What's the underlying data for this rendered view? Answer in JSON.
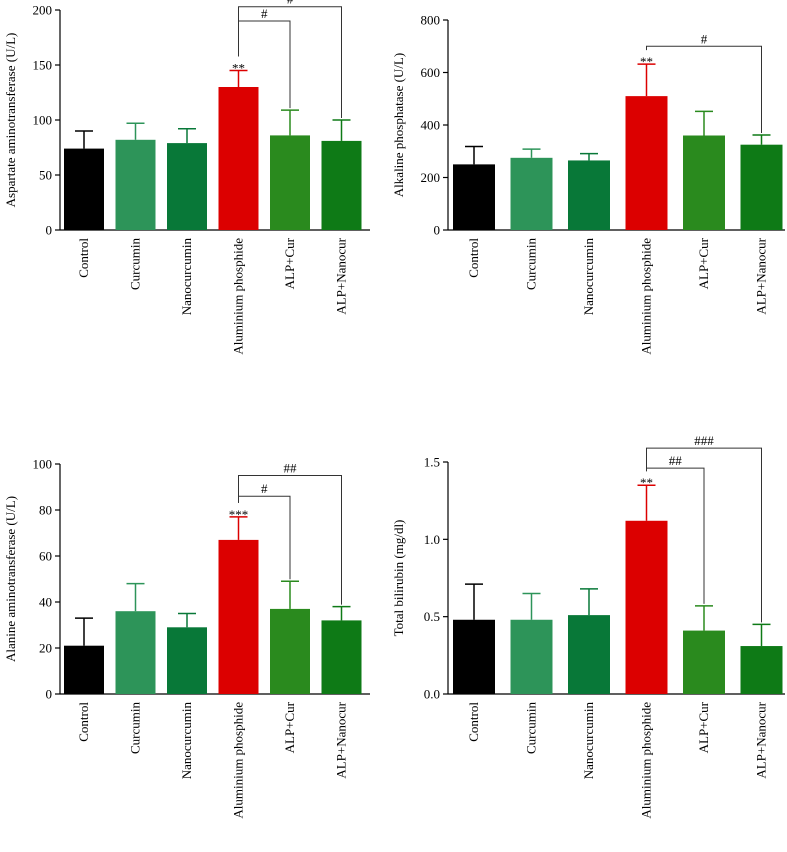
{
  "chart_data": [
    {
      "type": "bar",
      "id": "ast",
      "ylabel": "Aspartate aminotransferase (U/L)",
      "ylim": [
        0,
        200
      ],
      "yticks": [
        0,
        50,
        100,
        150,
        200
      ],
      "categories": [
        "Control",
        "Curcumin",
        "Nanocurcumin",
        "Aluminium phosphide",
        "ALP+Cur",
        "ALP+Nanocur"
      ],
      "values": [
        74,
        82,
        79,
        130,
        86,
        81
      ],
      "errors": [
        16,
        15,
        13,
        15,
        23,
        19
      ],
      "bar_labels": [
        "",
        "",
        "",
        "**",
        "",
        ""
      ],
      "brackets": [
        {
          "from": 3,
          "to": 4,
          "label": "#",
          "level": 190
        },
        {
          "from": 3,
          "to": 5,
          "label": "#",
          "level": 203
        }
      ]
    },
    {
      "type": "bar",
      "id": "alp",
      "ylabel": "Alkaline phosphatase (U/L)",
      "ylim": [
        0,
        800
      ],
      "yticks": [
        0,
        200,
        400,
        600,
        800
      ],
      "categories": [
        "Control",
        "Curcumin",
        "Nanocurcumin",
        "Aluminium phosphide",
        "ALP+Cur",
        "ALP+Nanocur"
      ],
      "values": [
        250,
        275,
        265,
        510,
        360,
        325
      ],
      "errors": [
        68,
        33,
        26,
        122,
        92,
        37
      ],
      "bar_labels": [
        "",
        "",
        "",
        "**",
        "",
        ""
      ],
      "brackets": [
        {
          "from": 3,
          "to": 5,
          "label": "#",
          "level": 700
        }
      ]
    },
    {
      "type": "bar",
      "id": "alt",
      "ylabel": "Alanine aminotransferase (U/L)",
      "ylim": [
        0,
        100
      ],
      "yticks": [
        0,
        20,
        40,
        60,
        80,
        100
      ],
      "categories": [
        "Control",
        "Curcumin",
        "Nanocurcumin",
        "Aluminium phosphide",
        "ALP+Cur",
        "ALP+Nanocur"
      ],
      "values": [
        21,
        36,
        29,
        67,
        37,
        32
      ],
      "errors": [
        12,
        12,
        6,
        10,
        12,
        6
      ],
      "bar_labels": [
        "",
        "",
        "",
        "***",
        "",
        ""
      ],
      "brackets": [
        {
          "from": 3,
          "to": 4,
          "label": "#",
          "level": 86
        },
        {
          "from": 3,
          "to": 5,
          "label": "##",
          "level": 95
        }
      ]
    },
    {
      "type": "bar",
      "id": "tbil",
      "ylabel": "Total bilirubin (mg/dl)",
      "ylim": [
        0,
        1.5
      ],
      "yticks": [
        0.0,
        0.5,
        1.0,
        1.5
      ],
      "tick_decimals": 1,
      "categories": [
        "Control",
        "Curcumin",
        "Nanocurcumin",
        "Aluminium phosphide",
        "ALP+Cur",
        "ALP+Nanocur"
      ],
      "values": [
        0.48,
        0.48,
        0.51,
        1.12,
        0.41,
        0.31
      ],
      "errors": [
        0.23,
        0.17,
        0.17,
        0.23,
        0.16,
        0.14
      ],
      "bar_labels": [
        "",
        "",
        "",
        "**",
        "",
        ""
      ],
      "brackets": [
        {
          "from": 3,
          "to": 4,
          "label": "##",
          "level": 1.46
        },
        {
          "from": 3,
          "to": 5,
          "label": "###",
          "level": 1.59
        }
      ]
    }
  ],
  "colors": [
    "#000000",
    "#2d9459",
    "#087838",
    "#dc0000",
    "#2a8a1e",
    "#0e7a16"
  ]
}
